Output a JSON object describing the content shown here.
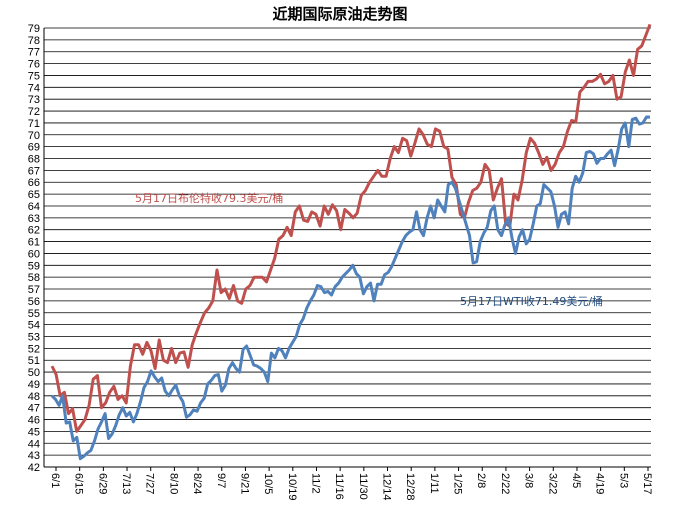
{
  "chart_data": {
    "type": "line",
    "title": "近期国际原油走势图",
    "ylim": [
      42,
      79
    ],
    "y_ticks": [
      "42",
      "43",
      "44",
      "45",
      "46",
      "47",
      "48",
      "49",
      "50",
      "51",
      "52",
      "53",
      "54",
      "55",
      "56",
      "57",
      "58",
      "59",
      "60",
      "61",
      "62",
      "63",
      "64",
      "65",
      "66",
      "67",
      "68",
      "69",
      "70",
      "71",
      "72",
      "73",
      "74",
      "75",
      "76",
      "77",
      "78",
      "79"
    ],
    "x_ticks": [
      "6/1",
      "6/15",
      "6/29",
      "7/13",
      "7/27",
      "8/10",
      "8/24",
      "9/7",
      "9/21",
      "10/5",
      "10/19",
      "11/2",
      "11/16",
      "11/30",
      "12/14",
      "12/28",
      "1/11",
      "1/25",
      "2/8",
      "2/22",
      "3/8",
      "3/22",
      "4/5",
      "4/19",
      "5/3",
      "5/17"
    ],
    "grid": "horizontal",
    "annotations": {
      "brent": "5月17日布伦特收79.3美元/桶",
      "wti": "5月17日WTI收71.49美元/桶"
    },
    "colors": {
      "brent": "#c0504d",
      "wti": "#4f81bd"
    },
    "series": [
      {
        "key": "brent",
        "values": [
          50.5,
          49.8,
          48.0,
          48.3,
          46.5,
          46.9,
          45.0,
          45.5,
          46.0,
          47.2,
          49.4,
          49.7,
          47.0,
          47.4,
          48.3,
          48.8,
          47.7,
          48.0,
          47.4,
          50.5,
          52.3,
          52.3,
          51.5,
          52.5,
          51.8,
          50.3,
          52.7,
          51.0,
          50.8,
          52.0,
          50.8,
          51.6,
          51.7,
          50.4,
          52.3,
          53.3,
          54.2,
          55.0,
          55.4,
          56.0,
          58.6,
          56.7,
          57.0,
          56.2,
          57.3,
          56.0,
          55.8,
          57.0,
          57.3,
          58.0,
          58.0,
          58.0,
          57.6,
          58.6,
          59.6,
          61.2,
          61.5,
          62.2,
          61.5,
          63.5,
          64.0,
          62.8,
          62.7,
          63.5,
          63.3,
          62.3,
          64.0,
          63.3,
          64.1,
          63.6,
          62.0,
          63.7,
          63.4,
          63.0,
          63.4,
          64.9,
          65.3,
          66.0,
          66.5,
          67.0,
          66.5,
          66.5,
          68.0,
          69.0,
          68.5,
          69.7,
          69.5,
          68.2,
          69.3,
          70.5,
          70.0,
          69.2,
          69.0,
          70.5,
          70.3,
          69.0,
          68.8,
          66.4,
          65.8,
          63.3,
          63.0,
          64.3,
          65.3,
          65.5,
          66.0,
          67.5,
          67.0,
          64.5,
          65.5,
          66.3,
          62.5,
          62.3,
          65.0,
          64.5,
          66.2,
          68.5,
          69.7,
          69.3,
          68.5,
          67.5,
          68.1,
          67.0,
          67.5,
          68.5,
          69.0,
          70.3,
          71.2,
          71.1,
          73.6,
          74.0,
          74.5,
          74.5,
          74.7,
          75.1,
          74.3,
          74.5,
          75.0,
          73.0,
          73.2,
          75.3,
          76.3,
          75.0,
          77.2,
          77.5,
          78.4,
          79.3
        ]
      },
      {
        "key": "wti",
        "values": [
          48.0,
          47.7,
          47.2,
          48.0,
          45.7,
          45.8,
          44.2,
          44.5,
          42.7,
          42.9,
          43.2,
          43.4,
          44.2,
          45.2,
          45.8,
          46.5,
          44.4,
          44.8,
          45.5,
          46.4,
          47.0,
          46.3,
          46.6,
          45.8,
          46.5,
          47.5,
          48.7,
          49.2,
          50.1,
          49.6,
          49.2,
          49.5,
          48.4,
          48.0,
          48.5,
          48.9,
          48.0,
          47.5,
          46.2,
          46.4,
          46.8,
          46.7,
          47.4,
          47.8,
          49.0,
          49.3,
          49.7,
          49.8,
          48.4,
          48.9,
          50.3,
          50.8,
          50.3,
          50.0,
          51.9,
          52.2,
          51.4,
          50.6,
          50.5,
          50.3,
          50.0,
          49.2,
          51.6,
          51.2,
          52.0,
          51.8,
          51.2,
          52.0,
          52.5,
          53.0,
          54.0,
          54.5,
          55.4,
          56.0,
          56.5,
          57.3,
          57.2,
          56.7,
          56.8,
          56.5,
          57.2,
          57.5,
          58.0,
          58.3,
          58.6,
          59.0,
          58.3,
          58.0,
          56.6,
          57.2,
          57.5,
          56.0,
          57.4,
          57.4,
          58.2,
          58.4,
          58.9,
          59.6,
          60.3,
          61.0,
          61.5,
          61.8,
          62.0,
          63.5,
          62.0,
          61.5,
          63.0,
          64.0,
          63.0,
          64.5,
          64.0,
          63.5,
          65.8,
          66.0,
          65.5,
          64.5,
          63.5,
          62.5,
          61.5,
          59.2,
          59.3,
          61.0,
          61.7,
          62.2,
          63.6,
          64.0,
          62.0,
          61.5,
          62.4,
          63.0,
          61.3,
          60.0,
          61.4,
          62.0,
          60.8,
          61.2,
          62.5,
          64.0,
          64.2,
          65.8,
          65.5,
          65.2,
          64.0,
          62.2,
          63.3,
          63.5,
          62.5,
          65.5,
          66.5,
          66.0,
          66.8,
          68.5,
          68.6,
          68.4,
          67.6,
          68.0,
          68.0,
          68.4,
          68.7,
          67.4,
          68.8,
          70.5,
          71.0,
          69.0,
          71.3,
          71.4,
          70.9,
          71.0,
          71.5,
          71.49
        ]
      }
    ]
  }
}
